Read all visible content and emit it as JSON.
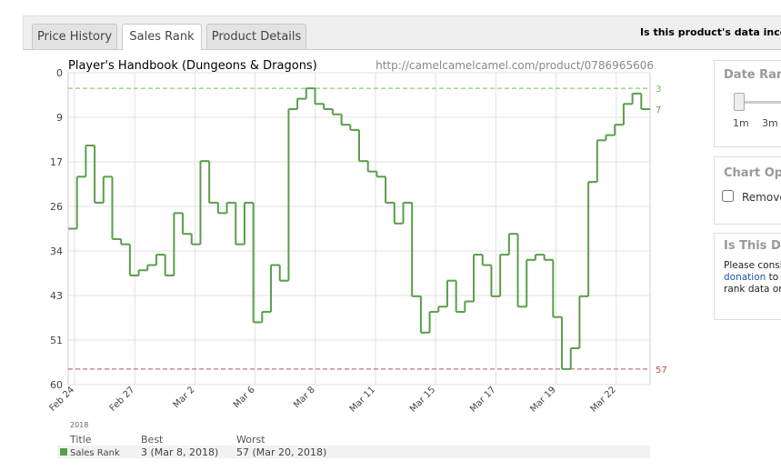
{
  "tabs": [
    "Price History",
    "Sales Rank",
    "Product Details"
  ],
  "notice": "Is this product's data incorrec",
  "chart_data": {
    "type": "step",
    "title": "Player's Handbook (Dungeons & Dragons)",
    "url": "http://camelcamelcamel.com/product/0786965606",
    "ylim": [
      0,
      60
    ],
    "y_inverted": true,
    "grid": true,
    "yticks": [
      0,
      {
        "value": 8.57,
        "label": "9"
      },
      {
        "value": 17.14,
        "label": "17"
      },
      {
        "value": 25.71,
        "label": "26"
      },
      {
        "value": 34.29,
        "label": "34"
      },
      {
        "value": 42.86,
        "label": "43"
      },
      {
        "value": 51.43,
        "label": "51"
      },
      60
    ],
    "x_labels": [
      "Feb 24",
      "Feb 27",
      "Mar 2",
      "Mar 6",
      "Mar 8",
      "Mar 11",
      "Mar 15",
      "Mar 17",
      "Mar 19",
      "Mar 22"
    ],
    "year": "2018",
    "series": [
      {
        "name": "Sales Rank",
        "color": "#5a9e4b",
        "values": [
          30,
          20,
          14,
          25,
          20,
          32,
          33,
          39,
          38,
          37,
          35,
          39,
          27,
          31,
          33,
          17,
          25,
          27,
          25,
          33,
          25,
          48,
          46,
          37,
          40,
          7,
          5,
          3,
          6,
          7,
          8,
          10,
          11,
          17,
          19,
          20,
          25,
          29,
          25,
          43,
          50,
          46,
          45,
          40,
          46,
          44,
          35,
          37,
          43,
          35,
          31,
          45,
          36,
          35,
          36,
          47,
          57,
          53,
          43,
          21,
          13,
          12,
          10,
          6,
          4,
          7
        ]
      }
    ],
    "best": 3,
    "best_color": "#6fbf5f",
    "worst": 57,
    "worst_color": "#c0504d"
  },
  "stats": {
    "headers": [
      "Title",
      "Best",
      "Worst"
    ],
    "best": "3 (Mar 8, 2018)",
    "worst": "57 (Mar 20, 2018)"
  },
  "sidebar": {
    "date_range": {
      "title": "Date Rang",
      "options": [
        "1m",
        "3m"
      ]
    },
    "chart_options": {
      "title": "Chart Opti",
      "checkbox": "Remove"
    },
    "data_box": {
      "title": "Is This Dat",
      "line1": "Please consi",
      "link": "donation",
      "line2": " to h",
      "line3": "rank data onl"
    }
  }
}
